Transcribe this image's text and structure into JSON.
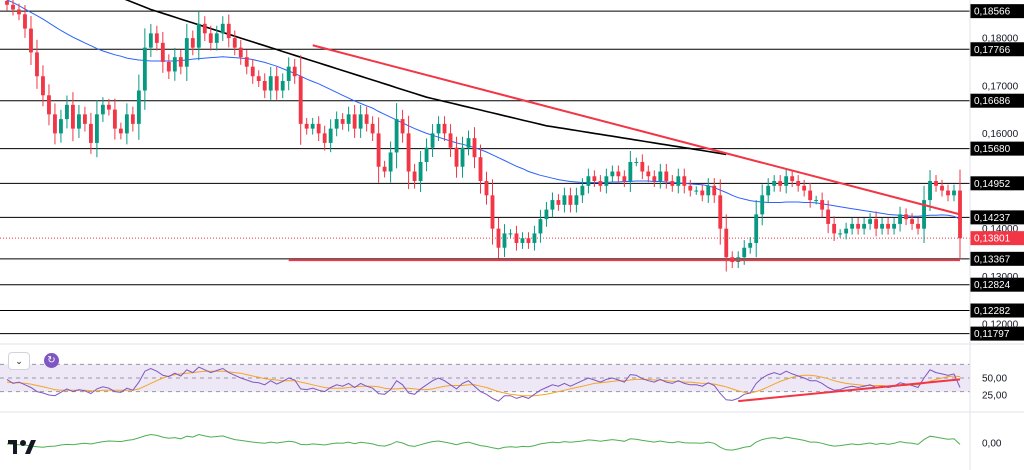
{
  "chart_data": [
    {
      "type": "candlestick",
      "title": "",
      "x_count": 160,
      "ylim": [
        0.116,
        0.188
      ],
      "y_ticks": [
        "0,18000",
        "0,17000",
        "0,16000",
        "0,14000",
        "0,13000",
        "0,12000"
      ],
      "horizontal_levels": [
        {
          "label": "0,18566",
          "value": 0.18566
        },
        {
          "label": "0,17766",
          "value": 0.17766
        },
        {
          "label": "0,16686",
          "value": 0.16686
        },
        {
          "label": "0,15680",
          "value": 0.1568
        },
        {
          "label": "0,14952",
          "value": 0.14952
        },
        {
          "label": "0,14237",
          "value": 0.14237
        },
        {
          "label": "0,13367",
          "value": 0.13367
        },
        {
          "label": "0,12824",
          "value": 0.12824
        },
        {
          "label": "0,12282",
          "value": 0.12282
        },
        {
          "label": "0,11797",
          "value": 0.11797
        }
      ],
      "current_price": {
        "label": "0,13801",
        "value": 0.13801,
        "color": "#f23645"
      },
      "closes": [
        0.187,
        0.186,
        0.185,
        0.182,
        0.177,
        0.172,
        0.168,
        0.164,
        0.16,
        0.163,
        0.166,
        0.161,
        0.164,
        0.162,
        0.158,
        0.164,
        0.166,
        0.165,
        0.161,
        0.16,
        0.164,
        0.162,
        0.169,
        0.178,
        0.181,
        0.179,
        0.175,
        0.173,
        0.176,
        0.174,
        0.18,
        0.178,
        0.183,
        0.181,
        0.179,
        0.181,
        0.183,
        0.18,
        0.178,
        0.176,
        0.174,
        0.172,
        0.171,
        0.169,
        0.172,
        0.169,
        0.171,
        0.174,
        0.172,
        0.162,
        0.161,
        0.162,
        0.16,
        0.158,
        0.161,
        0.163,
        0.162,
        0.164,
        0.161,
        0.164,
        0.162,
        0.16,
        0.153,
        0.152,
        0.156,
        0.163,
        0.16,
        0.152,
        0.15,
        0.154,
        0.157,
        0.16,
        0.162,
        0.16,
        0.157,
        0.153,
        0.157,
        0.159,
        0.155,
        0.15,
        0.147,
        0.14,
        0.136,
        0.139,
        0.139,
        0.137,
        0.138,
        0.137,
        0.139,
        0.142,
        0.144,
        0.146,
        0.145,
        0.147,
        0.145,
        0.147,
        0.149,
        0.151,
        0.15,
        0.149,
        0.151,
        0.152,
        0.151,
        0.15,
        0.154,
        0.154,
        0.152,
        0.151,
        0.15,
        0.152,
        0.15,
        0.149,
        0.151,
        0.149,
        0.148,
        0.148,
        0.147,
        0.149,
        0.147,
        0.14,
        0.134,
        0.133,
        0.134,
        0.136,
        0.137,
        0.143,
        0.147,
        0.149,
        0.15,
        0.149,
        0.151,
        0.15,
        0.149,
        0.148,
        0.146,
        0.146,
        0.144,
        0.141,
        0.139,
        0.139,
        0.14,
        0.141,
        0.14,
        0.141,
        0.142,
        0.14,
        0.141,
        0.14,
        0.141,
        0.143,
        0.142,
        0.141,
        0.14,
        0.146,
        0.15,
        0.149,
        0.148,
        0.147,
        0.148,
        0.138
      ],
      "moving_averages": [
        {
          "color": "#2962ff",
          "values": [
            0.188,
            0.1875,
            0.1868,
            0.1861,
            0.1854,
            0.1847,
            0.184,
            0.1832,
            0.1824,
            0.1816,
            0.1809,
            0.1802,
            0.1796,
            0.179,
            0.1784,
            0.1778,
            0.1773,
            0.1769,
            0.1765,
            0.1762,
            0.1758,
            0.1756,
            0.1754,
            0.1753,
            0.1752,
            0.1752,
            0.1752,
            0.1752,
            0.1752,
            0.1753,
            0.1754,
            0.1756,
            0.1757,
            0.1758,
            0.1759,
            0.176,
            0.1761,
            0.176,
            0.1759,
            0.1758,
            0.1757,
            0.1755,
            0.1752,
            0.1749,
            0.1745,
            0.1741,
            0.1736,
            0.1731,
            0.1726,
            0.172,
            0.1714,
            0.1709,
            0.1704,
            0.1698,
            0.1692,
            0.1686,
            0.168,
            0.1674,
            0.1668,
            0.1663,
            0.1658,
            0.1653,
            0.1646,
            0.164,
            0.1634,
            0.1628,
            0.1622,
            0.1616,
            0.161,
            0.1605,
            0.16,
            0.1596,
            0.1592,
            0.1588,
            0.1584,
            0.158,
            0.1577,
            0.1574,
            0.157,
            0.1566,
            0.1561,
            0.1555,
            0.1549,
            0.1543,
            0.1537,
            0.1531,
            0.1526,
            0.152,
            0.1516,
            0.1512,
            0.1509,
            0.1506,
            0.1503,
            0.1501,
            0.1499,
            0.1498,
            0.1497,
            0.1497,
            0.1497,
            0.1497,
            0.1497,
            0.1498,
            0.1498,
            0.1499,
            0.1499,
            0.15,
            0.15,
            0.15,
            0.1499,
            0.1499,
            0.1498,
            0.1497,
            0.1496,
            0.1495,
            0.1494,
            0.1493,
            0.1492,
            0.149,
            0.1486,
            0.1481,
            0.1476,
            0.147,
            0.1465,
            0.1462,
            0.1459,
            0.1457,
            0.1456,
            0.1455,
            0.1455,
            0.1455,
            0.1456,
            0.1456,
            0.1456,
            0.1455,
            0.1455,
            0.1454,
            0.1452,
            0.145,
            0.1448,
            0.1446,
            0.1444,
            0.1442,
            0.144,
            0.1438,
            0.1436,
            0.1434,
            0.1432,
            0.143,
            0.1429,
            0.1428,
            0.1427,
            0.1426,
            0.1426,
            0.1427,
            0.1428,
            0.1428,
            0.1429,
            0.1428,
            0.1426,
            0.142
          ]
        },
        {
          "color": "#000000",
          "values": [
            0.198,
            0.1975,
            0.197,
            0.1965,
            0.196,
            0.1955,
            0.195,
            0.1945,
            0.194,
            0.1935,
            0.193,
            0.1925,
            0.192,
            0.1915,
            0.191,
            0.1905,
            0.19,
            0.1895,
            0.189,
            0.1885,
            0.188,
            0.1875,
            0.187,
            0.1865,
            0.186,
            0.1856,
            0.1852,
            0.1848,
            0.1844,
            0.184,
            0.1836,
            0.1832,
            0.1828,
            0.1824,
            0.182,
            0.1816,
            0.1812,
            0.1808,
            0.1804,
            0.18,
            0.1796,
            0.1792,
            0.1788,
            0.1784,
            0.178,
            0.1776,
            0.1772,
            0.1768,
            0.1764,
            0.176,
            0.1756,
            0.1752,
            0.1748,
            0.1744,
            0.174,
            0.1736,
            0.1732,
            0.1728,
            0.1724,
            0.172,
            0.1716,
            0.1712,
            0.1708,
            0.1704,
            0.17,
            0.1696,
            0.1692,
            0.1688,
            0.1684,
            0.168,
            0.1676,
            0.1673,
            0.167,
            0.1667,
            0.1664,
            0.1661,
            0.1658,
            0.1655,
            0.1652,
            0.1649,
            0.1646,
            0.1643,
            0.164,
            0.1637,
            0.1634,
            0.1631,
            0.1628,
            0.1625,
            0.1622,
            0.1619,
            0.1616,
            0.1614,
            0.1612,
            0.161,
            0.1608,
            0.1606,
            0.1604,
            0.1602,
            0.16,
            0.1598,
            0.1596,
            0.1594,
            0.1592,
            0.159,
            0.1588,
            0.1586,
            0.1584,
            0.1582,
            0.158,
            0.1578,
            0.1576,
            0.1574,
            0.1572,
            0.157,
            0.1568,
            0.1566,
            0.1564,
            0.1562,
            0.156,
            0.1558,
            0.1556
          ]
        }
      ],
      "trendlines": [
        {
          "color": "#f23645",
          "start": {
            "index": 51,
            "value": 0.1785
          },
          "end": {
            "index": 159,
            "value": 0.143
          }
        },
        {
          "color": "#f23645",
          "start": {
            "index": 47,
            "value": 0.1334
          },
          "end": {
            "index": 159,
            "value": 0.1334
          }
        }
      ]
    },
    {
      "type": "line",
      "title": "RSI",
      "ylim": [
        0,
        100
      ],
      "y_ticks": [
        "50,00",
        "25,00"
      ],
      "band": [
        30,
        70
      ],
      "series": [
        {
          "color": "#7e57c2",
          "values": [
            48,
            42,
            44,
            40,
            36,
            30,
            28,
            25,
            24,
            29,
            34,
            30,
            33,
            31,
            27,
            34,
            37,
            35,
            30,
            29,
            35,
            32,
            44,
            60,
            64,
            60,
            54,
            52,
            57,
            53,
            62,
            58,
            66,
            62,
            58,
            61,
            64,
            58,
            54,
            50,
            47,
            44,
            43,
            40,
            46,
            41,
            45,
            50,
            47,
            34,
            33,
            35,
            32,
            30,
            36,
            40,
            38,
            42,
            36,
            42,
            38,
            35,
            27,
            26,
            33,
            46,
            40,
            28,
            26,
            34,
            40,
            46,
            50,
            46,
            40,
            34,
            42,
            46,
            38,
            30,
            26,
            20,
            16,
            24,
            24,
            20,
            23,
            20,
            26,
            32,
            36,
            40,
            38,
            42,
            38,
            42,
            46,
            50,
            47,
            44,
            48,
            50,
            47,
            44,
            55,
            54,
            49,
            46,
            44,
            48,
            44,
            42,
            46,
            42,
            40,
            40,
            38,
            43,
            39,
            27,
            18,
            17,
            20,
            26,
            28,
            42,
            50,
            55,
            58,
            55,
            60,
            56,
            53,
            50,
            46,
            46,
            42,
            36,
            32,
            33,
            36,
            38,
            36,
            38,
            40,
            36,
            38,
            36,
            38,
            43,
            41,
            39,
            36,
            50,
            62,
            58,
            56,
            54,
            56,
            36
          ]
        },
        {
          "color": "#f5a623",
          "values": [
            44,
            43,
            43,
            42,
            41,
            39,
            37,
            35,
            33,
            32,
            32,
            32,
            32,
            32,
            31,
            31,
            32,
            32,
            32,
            32,
            32,
            32,
            34,
            38,
            42,
            46,
            50,
            53,
            55,
            56,
            57,
            58,
            59,
            60,
            60,
            60,
            60,
            59,
            58,
            57,
            55,
            53,
            51,
            49,
            48,
            47,
            46,
            46,
            46,
            44,
            42,
            40,
            38,
            36,
            35,
            35,
            35,
            36,
            37,
            38,
            38,
            38,
            37,
            35,
            34,
            34,
            35,
            35,
            34,
            33,
            33,
            34,
            36,
            38,
            39,
            39,
            39,
            40,
            40,
            38,
            36,
            33,
            30,
            28,
            26,
            25,
            24,
            24,
            24,
            25,
            26,
            28,
            30,
            32,
            34,
            36,
            38,
            40,
            42,
            43,
            44,
            45,
            46,
            46,
            47,
            48,
            48,
            48,
            47,
            47,
            46,
            45,
            45,
            44,
            44,
            43,
            42,
            42,
            41,
            39,
            37,
            34,
            31,
            29,
            28,
            30,
            33,
            37,
            41,
            45,
            48,
            51,
            53,
            54,
            54,
            53,
            51,
            49,
            46,
            44,
            42,
            41,
            40,
            39,
            39,
            39,
            39,
            38,
            38,
            39,
            39,
            40,
            40,
            42,
            45,
            48,
            50,
            52,
            53,
            52
          ]
        }
      ],
      "trendlines": [
        {
          "color": "#f23645",
          "start": {
            "index": 122,
            "value": 16
          },
          "end": {
            "index": 159,
            "value": 48
          }
        }
      ]
    },
    {
      "type": "line",
      "title": "",
      "ylim": [
        -1,
        1
      ],
      "y_ticks": [
        "0,00"
      ],
      "series": [
        {
          "color": "#4caf50",
          "values": [
            -0.05,
            -0.08,
            -0.1,
            -0.12,
            -0.18,
            -0.22,
            -0.25,
            -0.2,
            -0.18,
            -0.12,
            -0.08,
            -0.1,
            -0.05,
            -0.02,
            -0.06,
            0.02,
            0.08,
            0.12,
            0.1,
            0.08,
            0.15,
            0.2,
            0.3,
            0.42,
            0.5,
            0.45,
            0.35,
            0.28,
            0.32,
            0.25,
            0.4,
            0.35,
            0.5,
            0.42,
            0.35,
            0.38,
            0.42,
            0.3,
            0.2,
            0.15,
            0.1,
            0.05,
            0.02,
            -0.02,
            0.05,
            0.0,
            0.05,
            0.1,
            0.06,
            -0.08,
            -0.1,
            -0.05,
            -0.08,
            -0.12,
            -0.05,
            0.0,
            -0.02,
            0.05,
            -0.04,
            0.04,
            0.0,
            -0.05,
            -0.15,
            -0.18,
            -0.08,
            0.08,
            0.0,
            -0.15,
            -0.2,
            -0.1,
            0.0,
            0.08,
            0.12,
            0.05,
            -0.02,
            -0.1,
            0.0,
            0.05,
            -0.05,
            -0.15,
            -0.2,
            -0.28,
            -0.35,
            -0.25,
            -0.22,
            -0.25,
            -0.2,
            -0.22,
            -0.15,
            -0.05,
            0.0,
            0.05,
            0.02,
            0.08,
            0.04,
            0.08,
            0.12,
            0.18,
            0.15,
            0.1,
            0.15,
            0.2,
            0.15,
            0.1,
            0.25,
            0.22,
            0.15,
            0.1,
            0.05,
            0.12,
            0.05,
            0.02,
            0.08,
            0.02,
            0.0,
            0.0,
            -0.02,
            0.05,
            -0.02,
            -0.25,
            -0.4,
            -0.42,
            -0.35,
            -0.25,
            -0.2,
            0.05,
            0.2,
            0.28,
            0.32,
            0.25,
            0.35,
            0.28,
            0.22,
            0.15,
            0.05,
            0.05,
            -0.02,
            -0.12,
            -0.18,
            -0.15,
            -0.1,
            -0.05,
            -0.1,
            -0.05,
            0.0,
            -0.08,
            -0.02,
            -0.08,
            -0.02,
            0.08,
            0.02,
            -0.02,
            -0.08,
            0.2,
            0.4,
            0.35,
            0.28,
            0.22,
            0.25,
            -0.08
          ]
        }
      ]
    }
  ],
  "colors": {
    "up": "#089981",
    "down": "#f23645",
    "rsi_band_fill": "#ede7f6",
    "grid_dash": "#9598a1"
  },
  "icons": {
    "collapse": "chevron-down-icon",
    "refresh": "refresh-icon",
    "logo": "tradingview-logo-icon"
  }
}
